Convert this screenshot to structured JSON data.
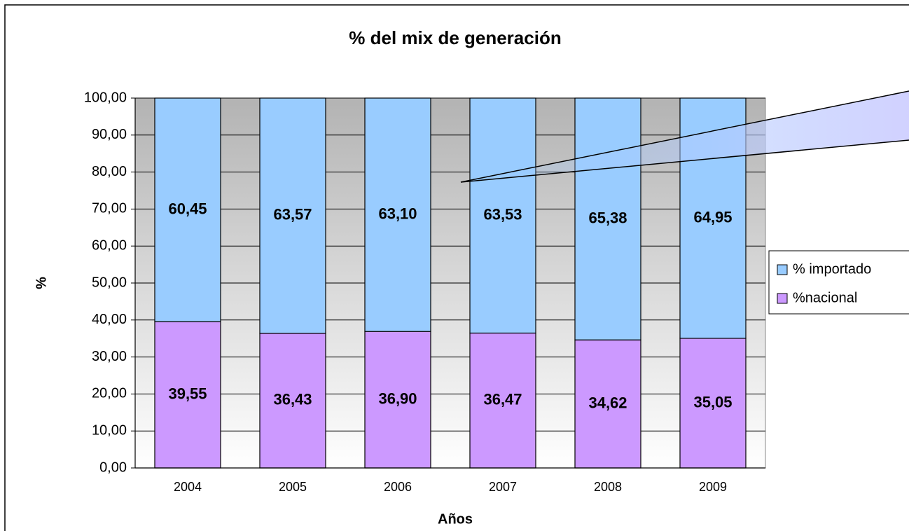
{
  "chart_data": {
    "type": "stacked_bar",
    "title": "% del mix de generación",
    "x_label": "Años",
    "y_label": "%",
    "categories": [
      "2004",
      "2005",
      "2006",
      "2007",
      "2008",
      "2009"
    ],
    "series": [
      {
        "name": "%nacional",
        "color": "#cc99ff",
        "values": [
          39.55,
          36.43,
          36.9,
          36.47,
          34.62,
          35.05
        ],
        "value_labels": [
          "39,55",
          "36,43",
          "36,90",
          "36,47",
          "34,62",
          "35,05"
        ]
      },
      {
        "name": "% importado",
        "color": "#99ccff",
        "values": [
          60.45,
          63.57,
          63.1,
          63.53,
          65.38,
          64.95
        ],
        "value_labels": [
          "60,45",
          "63,57",
          "63,10",
          "63,53",
          "65,38",
          "64,95"
        ]
      }
    ],
    "ylim": [
      0,
      100
    ],
    "yticks": [
      {
        "value": 0,
        "label": "0,00"
      },
      {
        "value": 10,
        "label": "10,00"
      },
      {
        "value": 20,
        "label": "20,00"
      },
      {
        "value": 30,
        "label": "30,00"
      },
      {
        "value": 40,
        "label": "40,00"
      },
      {
        "value": 50,
        "label": "50,00"
      },
      {
        "value": 60,
        "label": "60,00"
      },
      {
        "value": 70,
        "label": "70,00"
      },
      {
        "value": 80,
        "label": "80,00"
      },
      {
        "value": 90,
        "label": "90,00"
      },
      {
        "value": 100,
        "label": "100,00"
      }
    ],
    "grid": true,
    "legend": "right"
  }
}
